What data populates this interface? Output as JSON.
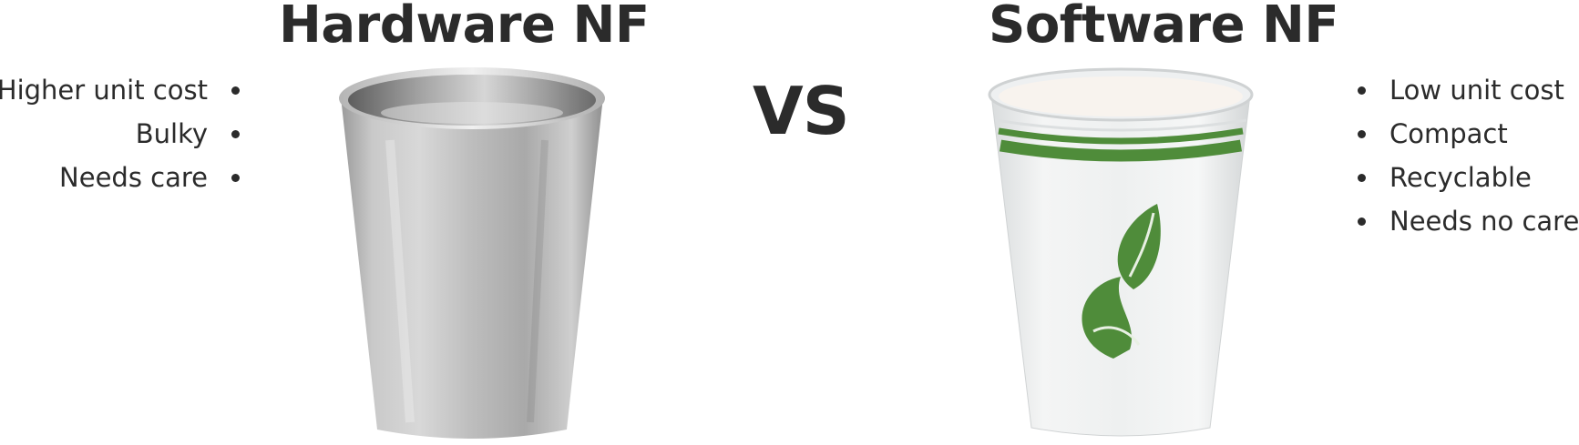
{
  "hardware": {
    "title": "Hardware NF",
    "points": [
      "Higher unit cost",
      "Bulky",
      "Needs care"
    ]
  },
  "versus": "VS",
  "software": {
    "title": "Software NF",
    "points": [
      "Low unit cost",
      "Compact",
      "Recyclable",
      "Needs no care"
    ]
  },
  "images": {
    "hardware_image": "stainless-steel-cup",
    "software_image": "paper-cup-with-green-leaf"
  },
  "colors": {
    "text": "#2b2b2b",
    "steel_light": "#e6e6e6",
    "steel_dark": "#8a8a8a",
    "paper_green": "#4f8c3a"
  }
}
